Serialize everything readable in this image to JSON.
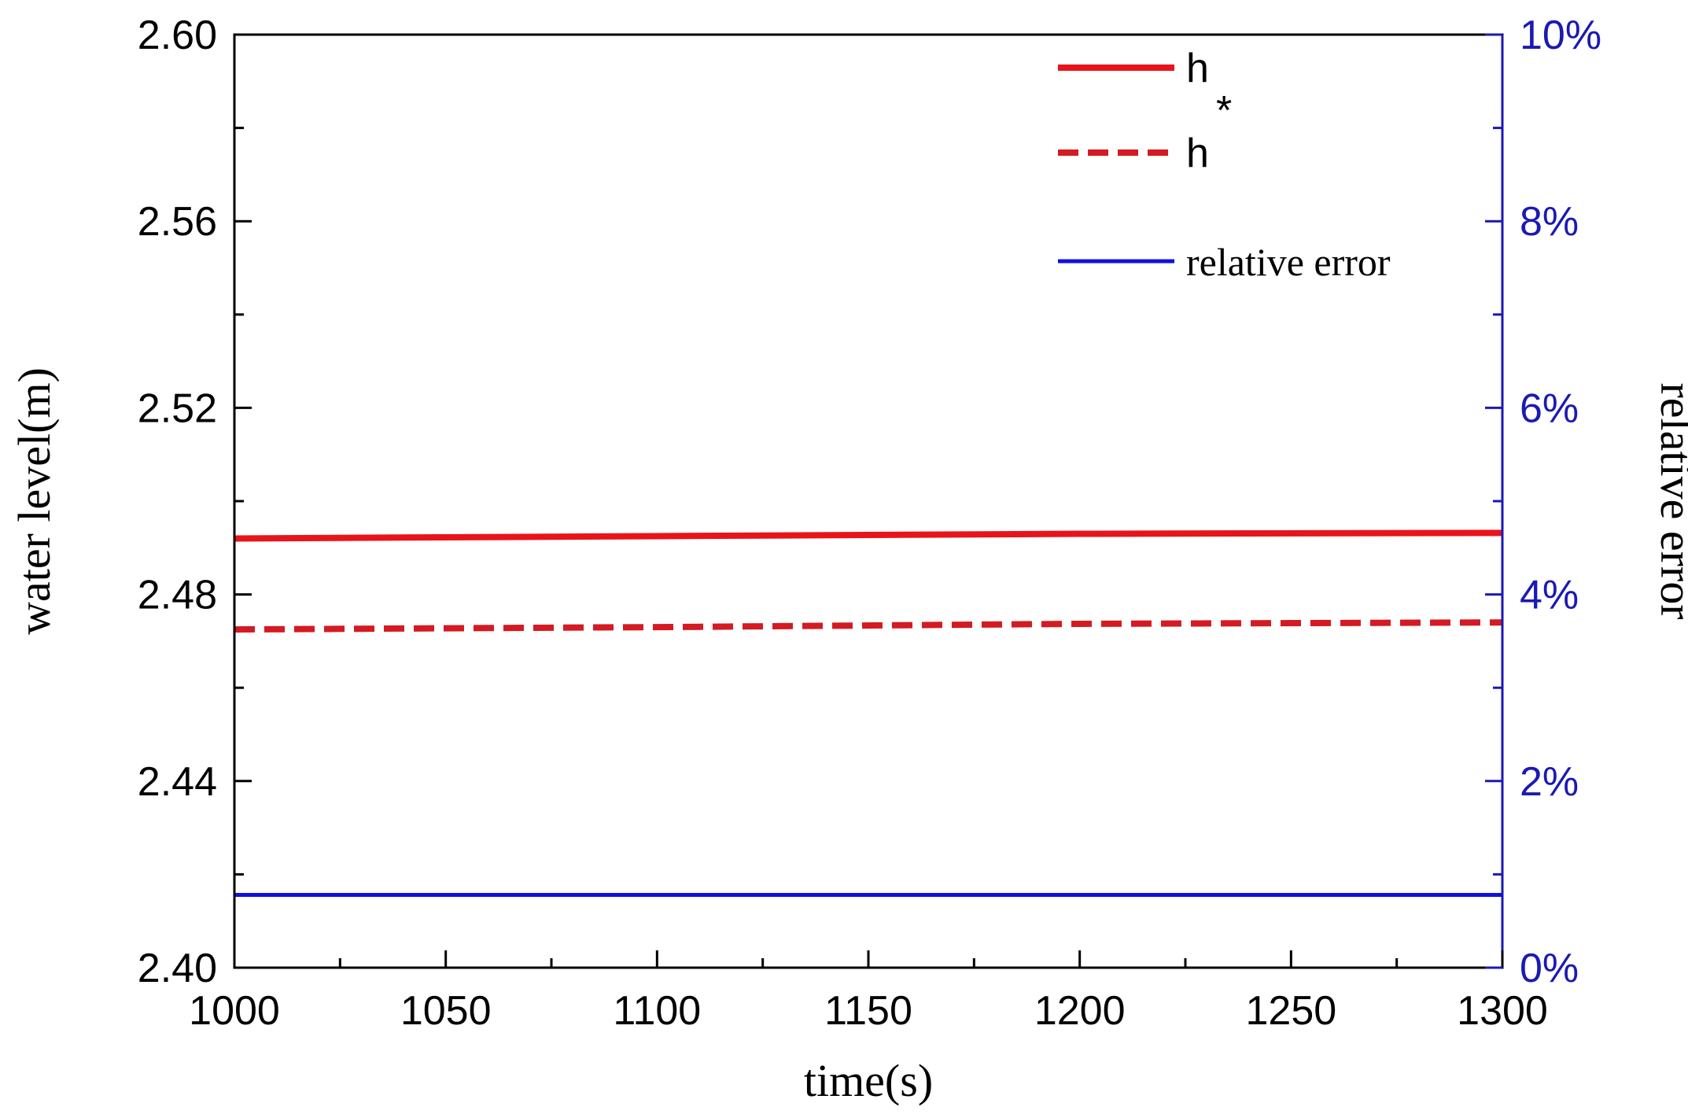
{
  "chart_data": {
    "type": "line",
    "xlabel": "time(s)",
    "ylabel_left": "water level(m)",
    "ylabel_right": "relative error",
    "xlim": [
      1000,
      1300
    ],
    "ylim_left": [
      2.4,
      2.6
    ],
    "ylim_right": [
      0,
      10
    ],
    "x_ticks": [
      1000,
      1050,
      1100,
      1150,
      1200,
      1250,
      1300
    ],
    "x_tick_labels": [
      "1000",
      "1050",
      "1100",
      "1150",
      "1200",
      "1250",
      "1300"
    ],
    "y_left_ticks": [
      2.4,
      2.44,
      2.48,
      2.52,
      2.56,
      2.6
    ],
    "y_left_tick_labels": [
      "2.40",
      "2.44",
      "2.48",
      "2.52",
      "2.56",
      "2.60"
    ],
    "y_right_ticks": [
      0,
      2,
      4,
      6,
      8,
      10
    ],
    "y_right_tick_labels": [
      "0%",
      "2%",
      "4%",
      "6%",
      "8%",
      "10%"
    ],
    "grid": false,
    "legend_position": "top-right",
    "colors": {
      "h": "#e8141b",
      "h_star": "#d41a22",
      "relative_error": "#1010e0",
      "right_axis": "#1a1ab4"
    },
    "series": [
      {
        "name": "h",
        "label_main": "h",
        "label_sup": "",
        "axis": "left",
        "style": "solid",
        "x": [
          1000,
          1100,
          1200,
          1300
        ],
        "y": [
          2.492,
          2.4925,
          2.493,
          2.4932
        ]
      },
      {
        "name": "h*",
        "label_main": "h",
        "label_sup": "*",
        "axis": "left",
        "style": "dashed",
        "x": [
          1000,
          1100,
          1200,
          1300
        ],
        "y": [
          2.4725,
          2.473,
          2.4737,
          2.474
        ]
      },
      {
        "name": "relative error",
        "label_main": "relative error",
        "label_sup": "",
        "axis": "right",
        "style": "solid",
        "x": [
          1000,
          1300
        ],
        "y": [
          0.78,
          0.78
        ]
      }
    ]
  }
}
